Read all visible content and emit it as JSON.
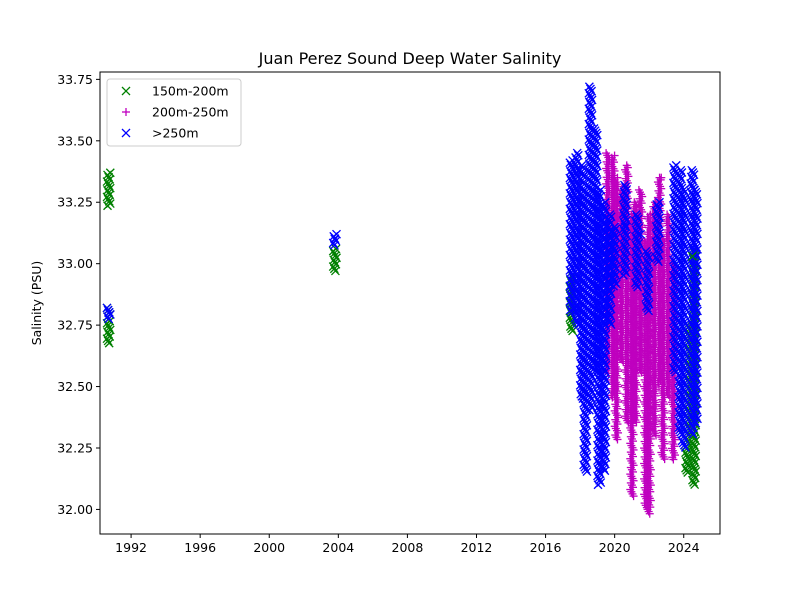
{
  "chart_data": {
    "type": "scatter",
    "title": "Juan Perez Sound Deep Water Salinity",
    "xlabel": "",
    "ylabel": "Salinity (PSU)",
    "xlim": [
      1990.2,
      2026.1
    ],
    "ylim": [
      31.9,
      33.78
    ],
    "x_ticks": [
      1992,
      1996,
      2000,
      2004,
      2008,
      2012,
      2016,
      2020,
      2024
    ],
    "y_ticks": [
      32.0,
      32.25,
      32.5,
      32.75,
      33.0,
      33.25,
      33.5,
      33.75
    ],
    "y_tick_labels": [
      "32.00",
      "32.25",
      "32.50",
      "32.75",
      "33.00",
      "33.25",
      "33.50",
      "33.75"
    ],
    "grid": false,
    "legend_position": "upper-left",
    "series": [
      {
        "name": "150m-200m",
        "color": "#008000",
        "marker": "x",
        "ranges": [
          {
            "x": 1990.7,
            "ymin": 32.67,
            "ymax": 32.82
          },
          {
            "x": 1990.7,
            "ymin": 33.23,
            "ymax": 33.37
          },
          {
            "x": 2003.8,
            "ymin": 32.97,
            "ymax": 33.06
          },
          {
            "x": 2017.5,
            "ymin": 32.72,
            "ymax": 32.95
          },
          {
            "x": 2024.2,
            "ymin": 32.15,
            "ymax": 32.75
          },
          {
            "x": 2024.6,
            "ymin": 32.1,
            "ymax": 33.05
          }
        ]
      },
      {
        "name": "200m-250m",
        "color": "#bf00bf",
        "marker": "+",
        "ranges": [
          {
            "x": 2019.6,
            "ymin": 32.55,
            "ymax": 33.45
          },
          {
            "x": 2019.9,
            "ymin": 32.45,
            "ymax": 33.44
          },
          {
            "x": 2020.1,
            "ymin": 32.28,
            "ymax": 33.35
          },
          {
            "x": 2020.4,
            "ymin": 32.6,
            "ymax": 33.3
          },
          {
            "x": 2020.7,
            "ymin": 32.35,
            "ymax": 33.4
          },
          {
            "x": 2021.0,
            "ymin": 32.05,
            "ymax": 33.2
          },
          {
            "x": 2021.2,
            "ymin": 32.35,
            "ymax": 33.25
          },
          {
            "x": 2021.5,
            "ymin": 32.55,
            "ymax": 33.3
          },
          {
            "x": 2021.8,
            "ymin": 32.0,
            "ymax": 33.1
          },
          {
            "x": 2022.0,
            "ymin": 31.98,
            "ymax": 33.2
          },
          {
            "x": 2022.3,
            "ymin": 32.3,
            "ymax": 33.25
          },
          {
            "x": 2022.6,
            "ymin": 32.5,
            "ymax": 33.35
          },
          {
            "x": 2022.8,
            "ymin": 32.2,
            "ymax": 33.1
          },
          {
            "x": 2023.1,
            "ymin": 32.45,
            "ymax": 33.2
          },
          {
            "x": 2023.4,
            "ymin": 32.2,
            "ymax": 33.0
          }
        ]
      },
      {
        "name": ">250m",
        "color": "#0000ff",
        "marker": "x",
        "ranges": [
          {
            "x": 1990.7,
            "ymin": 32.77,
            "ymax": 32.82
          },
          {
            "x": 2003.8,
            "ymin": 33.07,
            "ymax": 33.12
          },
          {
            "x": 2017.5,
            "ymin": 32.8,
            "ymax": 33.42
          },
          {
            "x": 2017.8,
            "ymin": 32.75,
            "ymax": 33.45
          },
          {
            "x": 2018.1,
            "ymin": 32.45,
            "ymax": 33.4
          },
          {
            "x": 2018.3,
            "ymin": 32.15,
            "ymax": 33.3
          },
          {
            "x": 2018.6,
            "ymin": 32.4,
            "ymax": 33.72
          },
          {
            "x": 2018.9,
            "ymin": 32.55,
            "ymax": 33.55
          },
          {
            "x": 2019.1,
            "ymin": 32.1,
            "ymax": 33.3
          },
          {
            "x": 2019.4,
            "ymin": 32.15,
            "ymax": 33.25
          },
          {
            "x": 2019.7,
            "ymin": 32.75,
            "ymax": 33.2
          },
          {
            "x": 2020.0,
            "ymin": 32.9,
            "ymax": 33.15
          },
          {
            "x": 2020.6,
            "ymin": 32.95,
            "ymax": 33.32
          },
          {
            "x": 2021.3,
            "ymin": 32.9,
            "ymax": 33.2
          },
          {
            "x": 2021.9,
            "ymin": 32.8,
            "ymax": 33.05
          },
          {
            "x": 2022.5,
            "ymin": 33.0,
            "ymax": 33.25
          },
          {
            "x": 2023.5,
            "ymin": 32.55,
            "ymax": 33.4
          },
          {
            "x": 2023.8,
            "ymin": 32.3,
            "ymax": 33.38
          },
          {
            "x": 2024.0,
            "ymin": 32.25,
            "ymax": 33.3
          },
          {
            "x": 2024.5,
            "ymin": 32.3,
            "ymax": 33.38
          },
          {
            "x": 2024.7,
            "ymin": 32.35,
            "ymax": 33.3
          }
        ]
      }
    ],
    "highlighted_points": [
      {
        "series": ">250m",
        "x": 1990.7,
        "y": 32.8
      },
      {
        "series": ">250m",
        "x": 2003.8,
        "y": 33.1
      },
      {
        "series": ">250m",
        "x": 2017.7,
        "y": 32.82
      },
      {
        "series": ">250m",
        "x": 2020.6,
        "y": 33.15
      },
      {
        "series": ">250m",
        "x": 2021.5,
        "y": 33.12
      },
      {
        "series": "200m-250m",
        "x": 2022.7,
        "y": 33.35
      },
      {
        "series": "150m-200m",
        "x": 2024.5,
        "y": 33.03
      }
    ]
  }
}
